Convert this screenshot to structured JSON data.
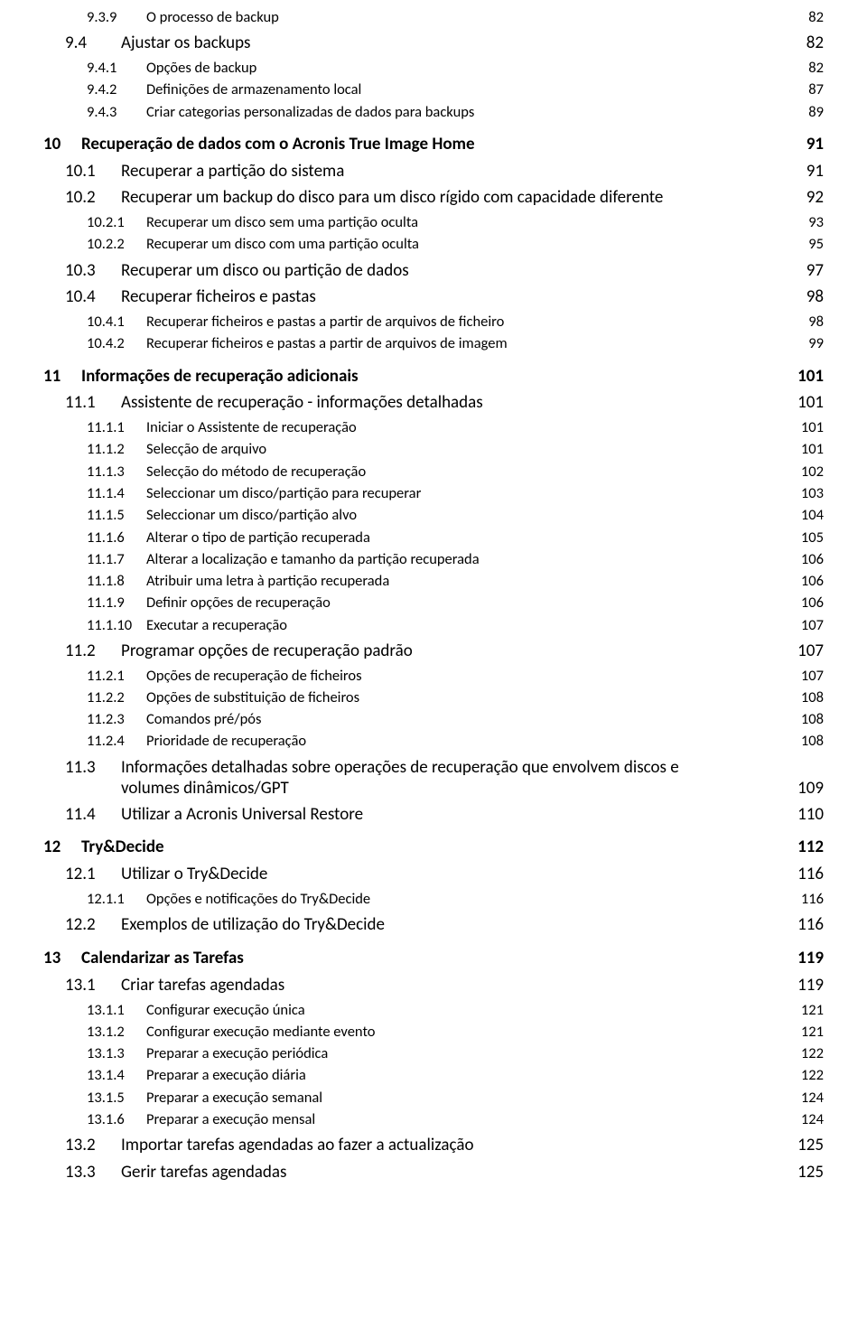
{
  "toc": [
    {
      "level": 3,
      "num": "9.3.9",
      "title": "O processo de backup",
      "page": "82"
    },
    {
      "level": 2,
      "num": "9.4",
      "title": "Ajustar os backups",
      "page": "82"
    },
    {
      "level": 3,
      "num": "9.4.1",
      "title": "Opções de backup",
      "page": "82"
    },
    {
      "level": 3,
      "num": "9.4.2",
      "title": "Definições de armazenamento local",
      "page": "87"
    },
    {
      "level": 3,
      "num": "9.4.3",
      "title": "Criar categorias personalizadas de dados para backups",
      "page": "89"
    },
    {
      "level": 1,
      "num": "10",
      "title": "Recuperação de dados com o Acronis True Image Home",
      "page": "91"
    },
    {
      "level": 2,
      "num": "10.1",
      "title": "Recuperar a partição do sistema",
      "page": "91"
    },
    {
      "level": 2,
      "num": "10.2",
      "title": "Recuperar um backup do disco para um disco rígido com capacidade diferente",
      "page": "92"
    },
    {
      "level": 3,
      "num": "10.2.1",
      "title": "Recuperar um disco sem uma partição oculta",
      "page": "93"
    },
    {
      "level": 3,
      "num": "10.2.2",
      "title": "Recuperar um disco com uma partição oculta",
      "page": "95"
    },
    {
      "level": 2,
      "num": "10.3",
      "title": "Recuperar um disco ou partição de dados",
      "page": "97"
    },
    {
      "level": 2,
      "num": "10.4",
      "title": "Recuperar ficheiros e pastas",
      "page": "98"
    },
    {
      "level": 3,
      "num": "10.4.1",
      "title": "Recuperar ficheiros e pastas a partir de arquivos de ficheiro",
      "page": "98"
    },
    {
      "level": 3,
      "num": "10.4.2",
      "title": "Recuperar ficheiros e pastas a partir de arquivos de imagem",
      "page": "99"
    },
    {
      "level": 1,
      "num": "11",
      "title": "Informações de recuperação adicionais",
      "page": "101"
    },
    {
      "level": 2,
      "num": "11.1",
      "title": "Assistente de recuperação - informações detalhadas",
      "page": "101"
    },
    {
      "level": 3,
      "num": "11.1.1",
      "title": "Iniciar o Assistente de recuperação",
      "page": "101"
    },
    {
      "level": 3,
      "num": "11.1.2",
      "title": "Selecção de arquivo",
      "page": "101"
    },
    {
      "level": 3,
      "num": "11.1.3",
      "title": "Selecção do método de recuperação",
      "page": "102"
    },
    {
      "level": 3,
      "num": "11.1.4",
      "title": "Seleccionar um disco/partição para recuperar",
      "page": "103"
    },
    {
      "level": 3,
      "num": "11.1.5",
      "title": "Seleccionar um disco/partição alvo",
      "page": "104"
    },
    {
      "level": 3,
      "num": "11.1.6",
      "title": "Alterar o tipo de partição recuperada",
      "page": "105"
    },
    {
      "level": 3,
      "num": "11.1.7",
      "title": "Alterar a localização e tamanho da partição recuperada",
      "page": "106"
    },
    {
      "level": 3,
      "num": "11.1.8",
      "title": "Atribuir uma letra à partição recuperada",
      "page": "106"
    },
    {
      "level": 3,
      "num": "11.1.9",
      "title": "Definir opções de recuperação",
      "page": "106"
    },
    {
      "level": 3,
      "num": "11.1.10",
      "title": "Executar a recuperação",
      "page": "107"
    },
    {
      "level": 2,
      "num": "11.2",
      "title": "Programar opções de recuperação padrão",
      "page": "107"
    },
    {
      "level": 3,
      "num": "11.2.1",
      "title": "Opções de recuperação de ficheiros",
      "page": "107"
    },
    {
      "level": 3,
      "num": "11.2.2",
      "title": "Opções de substituição de ficheiros",
      "page": "108"
    },
    {
      "level": 3,
      "num": "11.2.3",
      "title": "Comandos pré/pós",
      "page": "108"
    },
    {
      "level": 3,
      "num": "11.2.4",
      "title": "Prioridade de recuperação",
      "page": "108"
    },
    {
      "level": "2multi",
      "num": "11.3",
      "title1": "Informações detalhadas sobre operações de recuperação que envolvem discos e",
      "title2": "volumes dinâmicos/GPT",
      "page": "109"
    },
    {
      "level": 2,
      "num": "11.4",
      "title": "Utilizar a Acronis Universal Restore",
      "page": "110"
    },
    {
      "level": 1,
      "num": "12",
      "title": "Try&Decide",
      "page": "112"
    },
    {
      "level": 2,
      "num": "12.1",
      "title": "Utilizar o Try&Decide",
      "page": "116"
    },
    {
      "level": 3,
      "num": "12.1.1",
      "title": "Opções e notificações do Try&Decide",
      "page": "116"
    },
    {
      "level": 2,
      "num": "12.2",
      "title": "Exemplos de utilização do Try&Decide",
      "page": "116"
    },
    {
      "level": 1,
      "num": "13",
      "title": "Calendarizar as Tarefas",
      "page": "119"
    },
    {
      "level": 2,
      "num": "13.1",
      "title": "Criar tarefas agendadas",
      "page": "119"
    },
    {
      "level": 3,
      "num": "13.1.1",
      "title": "Configurar execução única",
      "page": "121"
    },
    {
      "level": 3,
      "num": "13.1.2",
      "title": "Configurar execução mediante evento",
      "page": "121"
    },
    {
      "level": 3,
      "num": "13.1.3",
      "title": "Preparar a execução periódica",
      "page": "122"
    },
    {
      "level": 3,
      "num": "13.1.4",
      "title": "Preparar a execução diária",
      "page": "122"
    },
    {
      "level": 3,
      "num": "13.1.5",
      "title": "Preparar a execução semanal",
      "page": "124"
    },
    {
      "level": 3,
      "num": "13.1.6",
      "title": "Preparar a execução mensal",
      "page": "124"
    },
    {
      "level": 2,
      "num": "13.2",
      "title": "Importar tarefas agendadas ao fazer a actualização",
      "page": "125"
    },
    {
      "level": 2,
      "num": "13.3",
      "title": "Gerir tarefas agendadas",
      "page": "125"
    }
  ]
}
